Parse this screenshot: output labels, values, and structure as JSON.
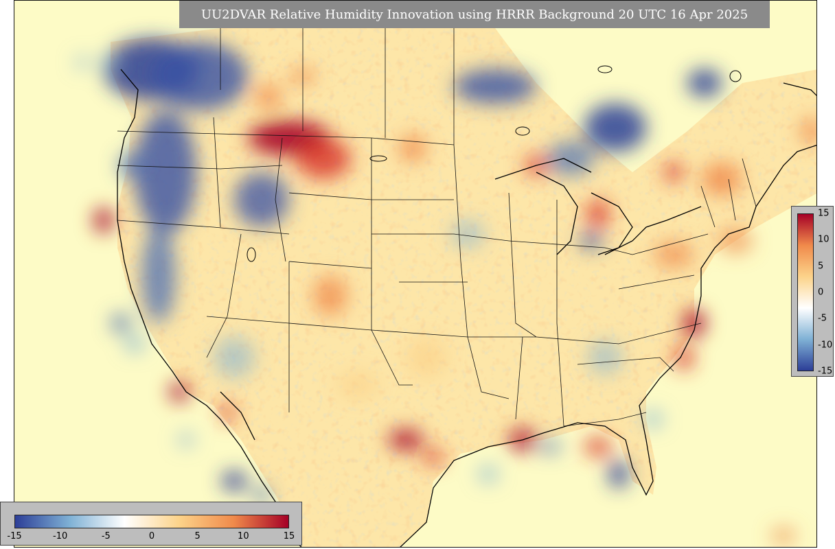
{
  "title": "UU2DVAR Relative Humidity Innovation using HRRR Background 20 UTC 16 Apr 2025",
  "colorbar": {
    "range": [
      -15,
      15
    ],
    "vertical_ticks": [
      "15",
      "10",
      "5",
      "0",
      "-5",
      "-10",
      "-15"
    ],
    "horizontal_ticks": [
      "-15",
      "-10",
      "-5",
      "0",
      "5",
      "10",
      "15"
    ],
    "colors": {
      "neg_max": "#2c3e97",
      "neg_mid": "#7fb1d5",
      "zero": "#ffffff",
      "pos_low": "#fcd38a",
      "pos_mid": "#f08a4b",
      "pos_max": "#a50026",
      "background": "#fdfbc6"
    }
  },
  "map": {
    "projection": "Lambert Conformal CONUS",
    "domain": "Contiguous United States with southern Canada and northern Mexico",
    "field": "Relative humidity innovation"
  }
}
